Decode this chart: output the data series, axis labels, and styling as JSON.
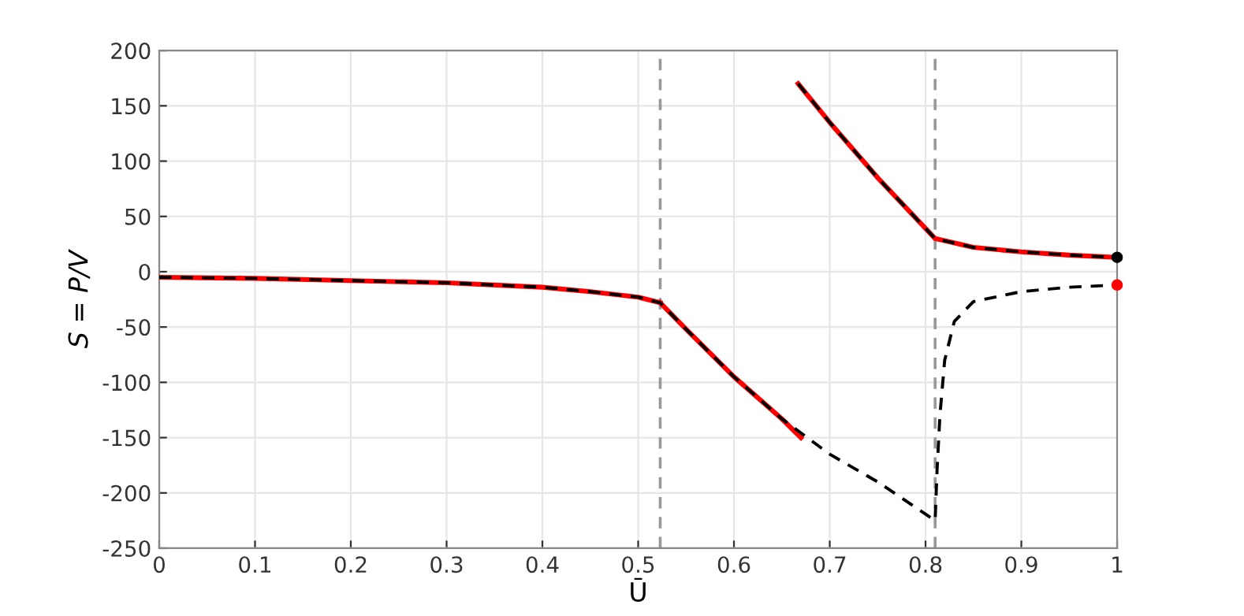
{
  "chart_data": {
    "type": "line",
    "xlabel": "Ū",
    "ylabel": "S = P/V",
    "xlim": [
      0,
      1
    ],
    "ylim": [
      -250,
      200
    ],
    "xticks": [
      0,
      0.1,
      0.2,
      0.3,
      0.4,
      0.5,
      0.6,
      0.7,
      0.8,
      0.9,
      1
    ],
    "yticks": [
      -250,
      -200,
      -150,
      -100,
      -50,
      0,
      50,
      100,
      150,
      200
    ],
    "grid": true,
    "legend": false,
    "series": [
      {
        "color": "#ff0000",
        "line_style": "solid",
        "x": [
          0,
          0.1,
          0.2,
          0.3,
          0.4,
          0.45,
          0.5,
          0.523
        ],
        "values": [
          -5,
          -6,
          -8,
          -10,
          -14,
          -18,
          -23,
          -28
        ]
      },
      {
        "color": "#ff0000",
        "line_style": "solid",
        "x": [
          0.523,
          0.55,
          0.6,
          0.65,
          0.67
        ],
        "values": [
          -28,
          -52,
          -95,
          -133,
          -150
        ]
      },
      {
        "color": "#ff0000",
        "line_style": "solid",
        "x": [
          0.667,
          0.7,
          0.75,
          0.81,
          0.85,
          0.9,
          0.95,
          1
        ],
        "values": [
          170,
          135,
          85,
          30,
          22,
          18,
          15,
          13
        ]
      },
      {
        "color": "#000000",
        "line_style": "dashed",
        "x": [
          0,
          0.1,
          0.2,
          0.3,
          0.4,
          0.45,
          0.5,
          0.523,
          0.55,
          0.6,
          0.65,
          0.7,
          0.75,
          0.81,
          0.812,
          0.815,
          0.82,
          0.83,
          0.85,
          0.9,
          0.95,
          1
        ],
        "values": [
          -5,
          -6,
          -8,
          -10,
          -14,
          -18,
          -23,
          -28,
          -52,
          -95,
          -133,
          -165,
          -190,
          -225,
          -180,
          -130,
          -80,
          -45,
          -27,
          -18,
          -14,
          -12
        ]
      },
      {
        "color": "#000000",
        "line_style": "dashed",
        "x": [
          0.667,
          0.7,
          0.75,
          0.81,
          0.85,
          0.9,
          0.95,
          1
        ],
        "values": [
          170,
          135,
          85,
          30,
          22,
          18,
          15,
          13
        ]
      },
      {
        "type": "scatter",
        "marker": "circle",
        "color": "#000000",
        "x": [
          1
        ],
        "values": [
          13
        ]
      },
      {
        "type": "scatter",
        "marker": "circle",
        "color": "#ff0000",
        "x": [
          1
        ],
        "values": [
          -12
        ]
      }
    ],
    "ref_lines": [
      {
        "axis": "x",
        "value": 0.523,
        "color": "#999999",
        "line_style": "dashed"
      },
      {
        "axis": "x",
        "value": 0.81,
        "color": "#999999",
        "line_style": "dashed"
      }
    ]
  }
}
